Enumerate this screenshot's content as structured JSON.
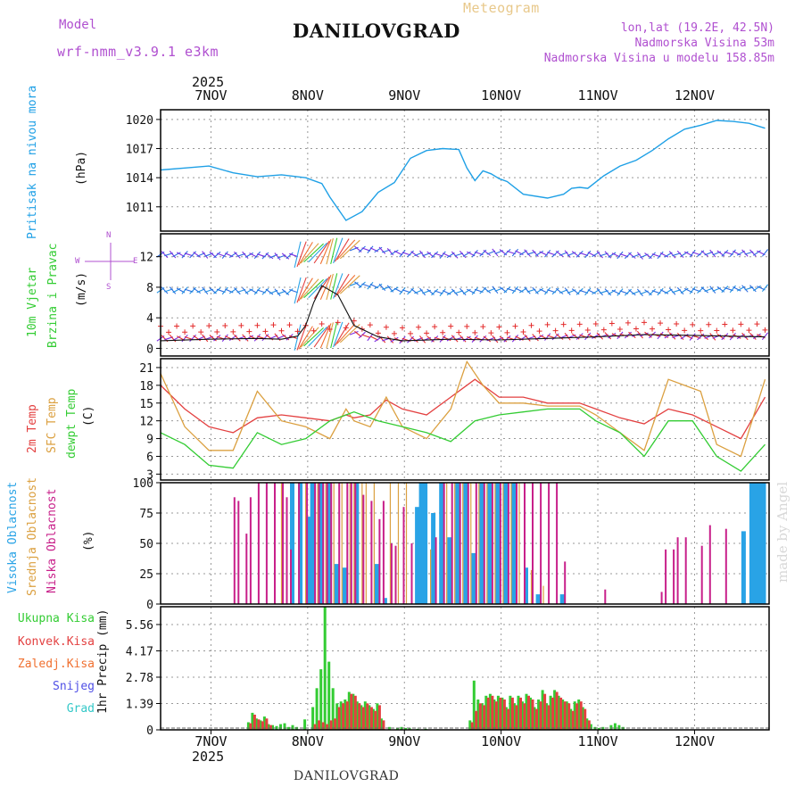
{
  "header": {
    "model_label": "Model",
    "model_name": "wrf-nmm_v3.9.1 e3km",
    "meteogram_label": "Meteogram",
    "station": "DANILOVGRAD",
    "coords": "lon,lat (19.2E, 42.5N)",
    "elevation": "Nadmorska Visina 53m",
    "model_elevation": "Nadmorska Visina u modelu 158.85m",
    "footer_station": "DANILOVGRAD",
    "watermark": "made by Angel"
  },
  "colors": {
    "pressure": "#1fa0e6",
    "wind10": "#2a6be0",
    "wind_low": "#7a2be0",
    "wind_dir": "#e32b2b",
    "temp2m": "#e34040",
    "sfc": "#dba040",
    "dew": "#33cc33",
    "high": "#29a3e6",
    "mid": "#dba040",
    "low": "#c8208a",
    "total": "#33cc33",
    "conv": "#e34040",
    "froz": "#f07030",
    "snow": "#5050e6",
    "grad": "#33c8c8",
    "compass": "#b050d0"
  },
  "chart_data": [
    {
      "panel": "pressure",
      "type": "line",
      "title": "Pritisak na nivou mora",
      "ylabel": "(hPa)",
      "ylim": [
        1008.5,
        1021
      ],
      "yticks": [
        "1011",
        "1014",
        "1017",
        "1020"
      ],
      "x_hours": [
        0,
        6,
        12,
        18,
        24,
        30,
        36,
        40,
        42,
        46,
        50,
        54,
        58,
        62,
        66,
        70,
        74,
        76,
        78,
        80,
        82,
        84,
        86,
        90,
        96,
        100,
        102,
        104,
        106,
        110,
        114,
        118,
        122,
        126,
        130,
        134,
        138,
        142,
        146,
        150
      ],
      "values": [
        1014.8,
        1015.0,
        1015.2,
        1014.5,
        1014.1,
        1014.3,
        1014.0,
        1013.4,
        1012.0,
        1009.6,
        1010.5,
        1012.5,
        1013.5,
        1016.0,
        1016.8,
        1017.0,
        1016.9,
        1015.0,
        1013.7,
        1014.7,
        1014.4,
        1013.9,
        1013.6,
        1012.3,
        1011.9,
        1012.3,
        1012.9,
        1013.0,
        1012.9,
        1014.2,
        1015.2,
        1015.8,
        1016.8,
        1018.0,
        1019.0,
        1019.4,
        1019.9,
        1019.8,
        1019.6,
        1019.1
      ]
    },
    {
      "panel": "wind",
      "type": "line",
      "title_lines": [
        "10m Vjetar",
        "Brzina i Pravac"
      ],
      "ylabel": "(m/s)",
      "ylim": [
        -1,
        15
      ],
      "yticks": [
        "0",
        "4",
        "8",
        "12"
      ],
      "compass": {
        "north": "N",
        "south": "S",
        "west": "W",
        "east": "E"
      },
      "series": [
        {
          "name": "upper_row",
          "x_hours": [
            0,
            24,
            30,
            36,
            48,
            54,
            60,
            72,
            84,
            96,
            108,
            120,
            132,
            150
          ],
          "values": [
            12.3,
            12.2,
            12.0,
            12.4,
            13.0,
            12.9,
            12.4,
            12.2,
            12.6,
            12.4,
            12.3,
            12.1,
            12.4,
            12.5
          ]
        },
        {
          "name": "mid_row",
          "x_hours": [
            0,
            24,
            30,
            36,
            48,
            54,
            60,
            72,
            84,
            96,
            108,
            120,
            132,
            150
          ],
          "values": [
            7.6,
            7.5,
            7.3,
            7.7,
            8.4,
            8.1,
            7.5,
            7.3,
            7.7,
            7.5,
            7.4,
            7.3,
            7.6,
            7.9
          ]
        },
        {
          "name": "low_row",
          "x_hours": [
            0,
            24,
            30,
            36,
            48,
            54,
            60,
            72,
            84,
            96,
            108,
            120,
            132,
            150
          ],
          "values": [
            1.3,
            1.4,
            1.5,
            1.4,
            2.0,
            1.2,
            1.1,
            1.3,
            1.2,
            1.5,
            1.6,
            1.8,
            1.5,
            1.6
          ]
        },
        {
          "name": "speed",
          "x_hours": [
            0,
            12,
            24,
            30,
            34,
            36,
            38,
            40,
            44,
            48,
            54,
            60,
            72,
            84,
            96,
            108,
            120,
            132,
            150
          ],
          "values": [
            1.0,
            1.2,
            1.3,
            1.2,
            1.6,
            3.0,
            6.0,
            8.2,
            7.0,
            3.0,
            1.5,
            1.0,
            1.2,
            1.1,
            1.3,
            1.5,
            1.8,
            1.7,
            1.5
          ]
        }
      ]
    },
    {
      "panel": "temperature",
      "type": "line",
      "title_lines": [
        "2m Temp",
        "SFC Temp",
        "dewpt Temp"
      ],
      "ylabel": "(C)",
      "ylim": [
        2,
        22.5
      ],
      "yticks": [
        "3",
        "6",
        "9",
        "12",
        "15",
        "18",
        "21"
      ],
      "series": [
        {
          "name": "2m Temp",
          "x_hours": [
            0,
            6,
            12,
            18,
            24,
            30,
            36,
            42,
            46,
            48,
            52,
            56,
            60,
            66,
            72,
            78,
            84,
            90,
            96,
            104,
            108,
            114,
            120,
            126,
            132,
            138,
            144,
            150
          ],
          "values": [
            18,
            14,
            11,
            10,
            12.5,
            13,
            12.5,
            12,
            13,
            12.5,
            13,
            15.5,
            14,
            13,
            16,
            19,
            16,
            16,
            15,
            15,
            14,
            12.5,
            11.5,
            14,
            13,
            11,
            9,
            16
          ]
        },
        {
          "name": "SFC Temp",
          "x_hours": [
            0,
            6,
            12,
            18,
            24,
            30,
            36,
            42,
            46,
            48,
            52,
            56,
            60,
            66,
            72,
            76,
            80,
            84,
            90,
            96,
            104,
            108,
            114,
            120,
            126,
            130,
            134,
            138,
            144,
            150
          ],
          "values": [
            20,
            11,
            7,
            7,
            17,
            12,
            11,
            9,
            14,
            12,
            11,
            16,
            11,
            9,
            14,
            22,
            18,
            15,
            15,
            14.5,
            14.5,
            13,
            10,
            7,
            19,
            18,
            17,
            8,
            6,
            19
          ]
        },
        {
          "name": "dewpt Temp",
          "x_hours": [
            0,
            6,
            12,
            18,
            24,
            30,
            36,
            42,
            48,
            54,
            60,
            66,
            72,
            78,
            84,
            90,
            96,
            104,
            108,
            114,
            120,
            126,
            132,
            138,
            144,
            150
          ],
          "values": [
            10,
            8,
            4.5,
            4,
            10,
            8,
            9,
            12,
            13.5,
            12,
            11,
            10,
            8.5,
            12,
            13,
            13.5,
            14,
            14,
            12,
            10,
            6,
            12,
            12,
            6,
            3.5,
            8
          ]
        }
      ]
    },
    {
      "panel": "clouds",
      "type": "bar",
      "title_lines": [
        "Visoka Oblacnost",
        "Srednja Oblacnost",
        "Niska Oblacnost"
      ],
      "ylabel": "(%)",
      "ylim": [
        0,
        100
      ],
      "yticks": [
        "0",
        "25",
        "50",
        "75",
        "100"
      ],
      "series": [
        {
          "name": "Visoka Oblacnost",
          "x_hours": [
            33,
            35,
            37,
            38,
            40,
            42,
            44,
            46,
            49,
            54,
            56,
            64,
            65,
            66,
            68,
            70,
            72,
            74,
            76,
            78,
            80,
            82,
            84,
            86,
            88,
            91,
            94,
            100,
            145,
            147,
            148,
            149,
            150
          ],
          "values": [
            100,
            100,
            72,
            100,
            100,
            100,
            33,
            30,
            100,
            33,
            5,
            80,
            100,
            100,
            75,
            100,
            55,
            100,
            100,
            42,
            100,
            100,
            100,
            100,
            100,
            30,
            8,
            8,
            60,
            100,
            100,
            100,
            100
          ]
        },
        {
          "name": "Srednja Oblacnost",
          "x_hours": [
            30,
            36,
            39,
            41,
            43,
            45,
            47,
            48,
            50,
            51,
            53,
            57,
            59,
            61,
            67,
            71,
            73,
            75,
            77,
            79,
            81,
            83,
            85,
            87,
            89,
            92,
            95
          ],
          "values": [
            100,
            100,
            100,
            100,
            100,
            100,
            100,
            100,
            100,
            100,
            100,
            100,
            100,
            100,
            45,
            100,
            100,
            100,
            100,
            100,
            100,
            100,
            100,
            100,
            100,
            28,
            15
          ]
        },
        {
          "name": "Niska Oblacnost",
          "x_hours": [
            18,
            19,
            21,
            22,
            24,
            26,
            28,
            30,
            31,
            32,
            34,
            36,
            38,
            39,
            40,
            41,
            42,
            44,
            46,
            47,
            48,
            50,
            52,
            54,
            55,
            57,
            58,
            60,
            62,
            68,
            70,
            72,
            74,
            76,
            78,
            80,
            82,
            84,
            86,
            88,
            90,
            92,
            94,
            96,
            98,
            100,
            110,
            124,
            125,
            127,
            128,
            130,
            134,
            136,
            140
          ],
          "values": [
            88,
            85,
            58,
            88,
            100,
            100,
            100,
            100,
            88,
            45,
            100,
            100,
            100,
            100,
            100,
            100,
            100,
            100,
            100,
            100,
            100,
            90,
            85,
            70,
            85,
            50,
            48,
            80,
            50,
            55,
            100,
            100,
            100,
            100,
            100,
            100,
            100,
            100,
            100,
            100,
            100,
            100,
            100,
            100,
            100,
            35,
            12,
            10,
            45,
            45,
            55,
            55,
            48,
            65,
            62
          ]
        }
      ]
    },
    {
      "panel": "precipitation",
      "type": "bar",
      "title_lines": [
        "Ukupna Kisa",
        "Konvek.Kisa",
        "Zaledj.Kisa",
        "Snijeg",
        "Grad"
      ],
      "ylabel": "1hr Precip (mm)",
      "ylim": [
        0,
        6.5
      ],
      "yticks": [
        "0",
        "1.39",
        "2.78",
        "4.17",
        "5.56"
      ],
      "series": [
        {
          "name": "Ukupna Kisa",
          "x_hours": [
            22,
            23,
            24,
            25,
            26,
            27,
            28,
            29,
            30,
            31,
            32,
            33,
            34,
            36,
            38,
            39,
            40,
            41,
            42,
            43,
            44,
            45,
            46,
            47,
            48,
            49,
            50,
            51,
            52,
            53,
            54,
            55,
            57,
            59,
            60,
            61,
            62,
            64,
            66,
            77,
            78,
            79,
            80,
            81,
            82,
            83,
            84,
            85,
            86,
            87,
            88,
            89,
            90,
            91,
            92,
            93,
            94,
            95,
            96,
            97,
            98,
            99,
            100,
            101,
            102,
            103,
            104,
            105,
            106,
            107,
            108,
            109,
            110,
            112,
            113,
            114,
            115
          ],
          "values": [
            0.4,
            0.9,
            0.6,
            0.5,
            0.7,
            0.3,
            0.25,
            0.2,
            0.3,
            0.35,
            0.15,
            0.25,
            0.15,
            0.55,
            1.2,
            2.2,
            3.2,
            6.5,
            3.6,
            2.2,
            1.4,
            1.5,
            1.6,
            2.0,
            1.9,
            1.5,
            1.3,
            1.5,
            1.3,
            1.1,
            1.4,
            0.6,
            0.15,
            0.1,
            0.15,
            0.1,
            0.1,
            0.05,
            0.05,
            0.5,
            2.6,
            1.6,
            1.4,
            1.8,
            1.9,
            1.6,
            1.8,
            1.7,
            1.2,
            1.8,
            1.4,
            1.8,
            1.5,
            1.9,
            1.7,
            1.2,
            1.6,
            2.1,
            1.4,
            1.8,
            2.1,
            1.8,
            1.6,
            1.5,
            1.1,
            1.5,
            1.6,
            1.2,
            0.6,
            0.3,
            0.15,
            0.1,
            0.15,
            0.25,
            0.35,
            0.25,
            0.15
          ]
        },
        {
          "name": "Konvek.Kisa",
          "x_hours": [
            22,
            23,
            24,
            25,
            26,
            27,
            38,
            39,
            40,
            41,
            42,
            43,
            44,
            45,
            46,
            47,
            48,
            49,
            50,
            51,
            52,
            53,
            54,
            55,
            77,
            78,
            79,
            80,
            81,
            82,
            83,
            84,
            85,
            86,
            87,
            88,
            89,
            90,
            91,
            92,
            93,
            94,
            95,
            96,
            97,
            98,
            99,
            100,
            101,
            102,
            103,
            104,
            105,
            106
          ],
          "values": [
            0.35,
            0.8,
            0.55,
            0.45,
            0.6,
            0.25,
            0.3,
            0.5,
            0.4,
            0.3,
            0.5,
            0.6,
            1.2,
            1.4,
            1.5,
            1.9,
            1.8,
            1.4,
            1.2,
            1.4,
            1.2,
            1.0,
            1.3,
            0.5,
            0.4,
            1.0,
            1.4,
            1.3,
            1.7,
            1.8,
            1.5,
            1.7,
            1.6,
            1.1,
            1.7,
            1.3,
            1.7,
            1.4,
            1.8,
            1.6,
            1.1,
            1.5,
            1.9,
            1.3,
            1.7,
            2.0,
            1.7,
            1.5,
            1.4,
            1.0,
            1.4,
            1.5,
            1.1,
            0.5
          ]
        }
      ]
    }
  ],
  "x_axis": {
    "start_offset_hours": -12.5,
    "hours_total": 151,
    "tick_labels": [
      "7NOV",
      "8NOV",
      "9NOV",
      "10NOV",
      "11NOV",
      "12NOV"
    ],
    "year": "2025"
  }
}
